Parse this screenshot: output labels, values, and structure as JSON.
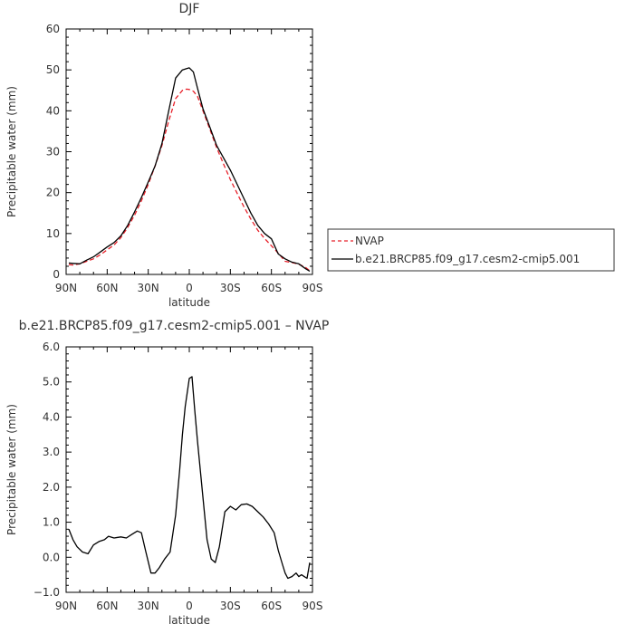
{
  "chart_data": [
    {
      "type": "line",
      "title": "DJF",
      "xlabel": "latitude",
      "ylabel": "Precipitable water (mm)",
      "xlim": [
        -90,
        90
      ],
      "ylim": [
        0,
        60
      ],
      "x_ticks": [
        -90,
        -60,
        -30,
        0,
        30,
        60,
        90
      ],
      "x_tick_labels": [
        "90N",
        "60N",
        "30N",
        "0",
        "30S",
        "60S",
        "90S"
      ],
      "y_ticks": [
        0,
        10,
        20,
        30,
        40,
        50,
        60
      ],
      "y_tick_labels": [
        "0",
        "10",
        "20",
        "30",
        "40",
        "50",
        "60"
      ],
      "legend_position": "right",
      "series": [
        {
          "name": "NVAP",
          "color": "#e8212a",
          "dash": "dashed",
          "x": [
            -88,
            -85,
            -80,
            -75,
            -70,
            -65,
            -60,
            -55,
            -50,
            -45,
            -40,
            -35,
            -30,
            -25,
            -20,
            -15,
            -10,
            -5,
            -2,
            0,
            3,
            6,
            10,
            15,
            20,
            25,
            30,
            35,
            40,
            45,
            50,
            55,
            60,
            65,
            70,
            75,
            80,
            85,
            88
          ],
          "y": [
            2.4,
            2.3,
            2.6,
            3.2,
            3.8,
            4.8,
            6.0,
            7.2,
            9.0,
            11.5,
            14.5,
            18.0,
            22.0,
            26.5,
            31.5,
            37.5,
            43.0,
            45.0,
            45.3,
            45.2,
            44.8,
            43.5,
            40.0,
            35.5,
            31.0,
            27.0,
            23.2,
            19.8,
            16.5,
            13.5,
            10.8,
            8.8,
            7.0,
            5.2,
            3.2,
            2.9,
            2.5,
            1.7,
            0.9
          ]
        },
        {
          "name": "b.e21.BRCP85.f09_g17.cesm2-cmip5.001",
          "color": "#000000",
          "dash": "solid",
          "x": [
            -88,
            -85,
            -80,
            -75,
            -70,
            -65,
            -60,
            -55,
            -50,
            -45,
            -40,
            -35,
            -30,
            -25,
            -20,
            -15,
            -10,
            -5,
            -2,
            0,
            3,
            6,
            10,
            15,
            20,
            25,
            30,
            35,
            40,
            45,
            50,
            55,
            60,
            65,
            70,
            75,
            80,
            85,
            88
          ],
          "y": [
            2.8,
            2.7,
            2.6,
            3.5,
            4.3,
            5.5,
            6.7,
            7.8,
            9.4,
            12.0,
            15.3,
            18.8,
            22.6,
            26.5,
            32.0,
            40.0,
            48.0,
            50.0,
            50.3,
            50.5,
            49.5,
            45.5,
            40.5,
            36.0,
            31.5,
            28.5,
            25.5,
            22.0,
            18.5,
            15.0,
            12.0,
            10.0,
            8.7,
            5.0,
            3.8,
            3.0,
            2.6,
            1.4,
            0.8
          ]
        }
      ]
    },
    {
      "type": "line",
      "title": "b.e21.BRCP85.f09_g17.cesm2-cmip5.001 – NVAP",
      "xlabel": "latitude",
      "ylabel": "Precipitable water (mm)",
      "xlim": [
        -90,
        90
      ],
      "ylim": [
        -1.0,
        6.0
      ],
      "x_ticks": [
        -90,
        -60,
        -30,
        0,
        30,
        60,
        90
      ],
      "x_tick_labels": [
        "90N",
        "60N",
        "30N",
        "0",
        "30S",
        "60S",
        "90S"
      ],
      "y_ticks": [
        -1,
        0,
        1,
        2,
        3,
        4,
        5,
        6
      ],
      "y_tick_labels": [
        "−1.0",
        "0.0",
        "1.0",
        "2.0",
        "3.0",
        "4.0",
        "5.0",
        "6.0"
      ],
      "series": [
        {
          "color": "#000000",
          "dash": "solid",
          "x": [
            -88,
            -85,
            -82,
            -78,
            -74,
            -70,
            -66,
            -62,
            -59,
            -55,
            -50,
            -46,
            -42,
            -38,
            -35,
            -32,
            -28,
            -25,
            -22,
            -18,
            -14,
            -10,
            -7,
            -5,
            -3,
            0,
            2,
            4,
            6,
            8,
            10,
            13,
            16,
            19,
            22,
            26,
            30,
            34,
            38,
            42,
            46,
            50,
            54,
            58,
            62,
            65,
            68,
            70,
            72,
            75,
            78,
            80,
            82,
            84,
            86,
            88
          ],
          "y": [
            0.8,
            0.5,
            0.3,
            0.15,
            0.1,
            0.35,
            0.45,
            0.5,
            0.6,
            0.55,
            0.58,
            0.55,
            0.65,
            0.75,
            0.7,
            0.2,
            -0.45,
            -0.45,
            -0.3,
            -0.05,
            0.15,
            1.2,
            2.5,
            3.5,
            4.3,
            5.1,
            5.15,
            4.2,
            3.3,
            2.5,
            1.7,
            0.5,
            -0.05,
            -0.15,
            0.3,
            1.3,
            1.45,
            1.35,
            1.5,
            1.52,
            1.45,
            1.3,
            1.15,
            0.95,
            0.7,
            0.2,
            -0.2,
            -0.45,
            -0.6,
            -0.55,
            -0.45,
            -0.55,
            -0.5,
            -0.55,
            -0.6,
            -0.15
          ]
        }
      ]
    }
  ]
}
